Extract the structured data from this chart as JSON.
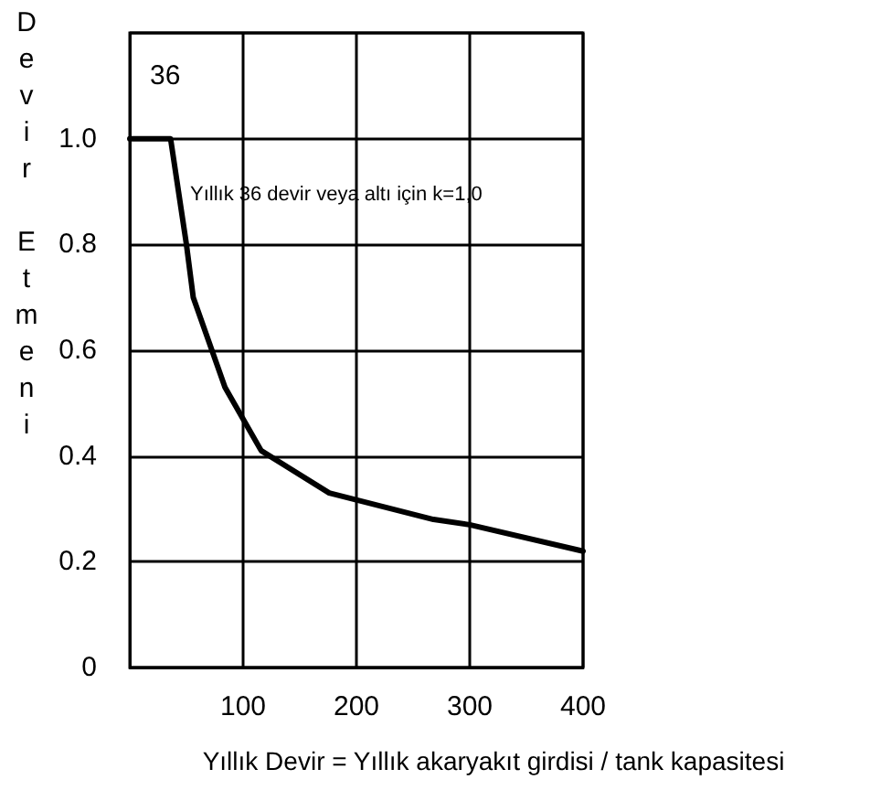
{
  "chart_data": {
    "type": "line",
    "xlabel": "Yıllık Devir = Yıllık akaryakıt girdisi / tank kapasitesi",
    "ylabel": "Devir Etmeni",
    "annotations": [
      "36",
      "Yıllık 36 devir veya altı için k=1,0"
    ],
    "series": [
      {
        "color": "#000000",
        "x": [
          0,
          36,
          50,
          56,
          84,
          100,
          116,
          176,
          268,
          300,
          400
        ],
        "values": [
          1.0,
          1.0,
          0.8,
          0.7,
          0.53,
          0.47,
          0.41,
          0.33,
          0.28,
          0.27,
          0.22
        ]
      }
    ],
    "xlim": [
      0,
      400
    ],
    "xticks": [
      100,
      200,
      300,
      400
    ],
    "ylim": [
      0,
      1.2
    ],
    "yticks": [
      0,
      0.2,
      0.4,
      0.6,
      0.8,
      {
        "value": 1,
        "label": "1.0"
      },
      {
        "value": 1.2,
        "label": null
      }
    ],
    "grid": true,
    "marker": "none",
    "line_style": "solid"
  }
}
